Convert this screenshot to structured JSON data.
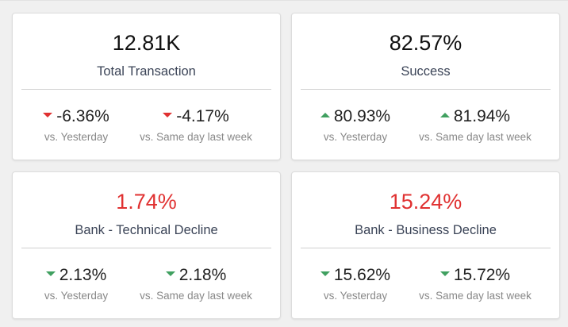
{
  "colors": {
    "red": "#e03131",
    "green": "#40a060"
  },
  "cards": [
    {
      "value": "12.81K",
      "label": "Total Transaction",
      "deltas": [
        {
          "value": "-6.36%",
          "label": "vs. Yesterday",
          "dir": "down",
          "color": "#e03131"
        },
        {
          "value": "-4.17%",
          "label": "vs. Same day last week",
          "dir": "down",
          "color": "#e03131"
        }
      ]
    },
    {
      "value": "82.57%",
      "label": "Success",
      "deltas": [
        {
          "value": "80.93%",
          "label": "vs. Yesterday",
          "dir": "up",
          "color": "#40a060"
        },
        {
          "value": "81.94%",
          "label": "vs. Same day last week",
          "dir": "up",
          "color": "#40a060"
        }
      ]
    },
    {
      "value": "1.74%",
      "label": "Bank - Technical Decline",
      "deltas": [
        {
          "value": "2.13%",
          "label": "vs. Yesterday",
          "dir": "down",
          "color": "#40a060"
        },
        {
          "value": "2.18%",
          "label": "vs. Same day last week",
          "dir": "down",
          "color": "#40a060"
        }
      ]
    },
    {
      "value": "15.24%",
      "label": "Bank - Business Decline",
      "deltas": [
        {
          "value": "15.62%",
          "label": "vs. Yesterday",
          "dir": "down",
          "color": "#40a060"
        },
        {
          "value": "15.72%",
          "label": "vs. Same day last week",
          "dir": "down",
          "color": "#40a060"
        }
      ]
    }
  ]
}
